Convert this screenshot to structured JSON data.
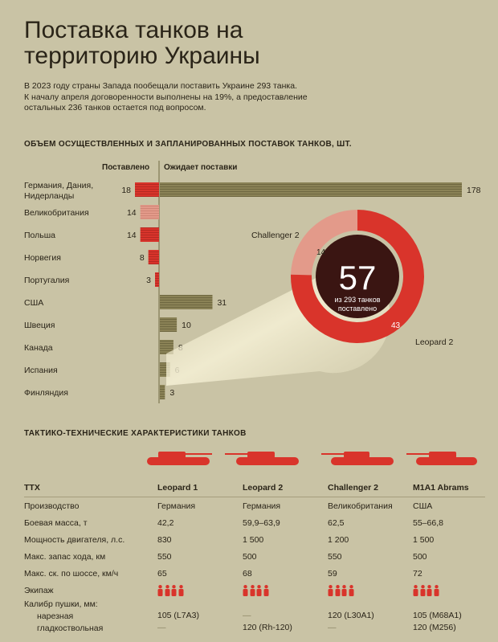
{
  "title": "Поставка танков на территорию Украины",
  "intro": "В 2023 году страны Запада пообещали поставить Украине 293 танка.\nК началу апреля договоренности выполнены на 19%, а предоставление\nостальных 236 танков остается под вопросом.",
  "chart_section_title": "ОБЪЕМ ОСУЩЕСТВЛЕННЫХ И ЗАПЛАНИРОВАННЫХ ПОСТАВОК ТАНКОВ, ШТ.",
  "colors": {
    "background": "#c9c3a5",
    "delivered": "#d9342b",
    "delivered_light": "#e39a8a",
    "pending": "#8a8256",
    "dark_text": "#2a2418"
  },
  "chart_data": [
    {
      "type": "bar",
      "headers": {
        "delivered": "Поставлено",
        "pending": "Ожидает поставки"
      },
      "categories": [
        "Германия, Дания, Нидерланды",
        "Великобритания",
        "Польша",
        "Норвегия",
        "Португалия",
        "США",
        "Швеция",
        "Канада",
        "Испания",
        "Финляндия"
      ],
      "series": [
        {
          "name": "Поставлено",
          "values": [
            18,
            14,
            14,
            8,
            3,
            0,
            0,
            0,
            0,
            0
          ]
        },
        {
          "name": "Ожидает поставки",
          "values": [
            178,
            0,
            0,
            0,
            0,
            31,
            10,
            8,
            6,
            3
          ]
        }
      ]
    },
    {
      "type": "pie",
      "center_value": "57",
      "center_text": "из 293 танков поставлено",
      "labels": [
        "Challenger 2",
        "Leopard 2"
      ],
      "values": [
        14,
        43
      ]
    }
  ],
  "ttx": {
    "section_title": "ТАКТИКО-ТЕХНИЧЕСКИЕ ХАРАКТЕРИСТИКИ ТАНКОВ",
    "header": [
      "ТТХ",
      "Leopard 1",
      "Leopard 2",
      "Challenger 2",
      "M1A1 Abrams"
    ],
    "rows": [
      [
        "Производство",
        "Германия",
        "Германия",
        "Великобритания",
        "США"
      ],
      [
        "Боевая масса, т",
        "42,2",
        "59,9–63,9",
        "62,5",
        "55–66,8"
      ],
      [
        "Мощность двигателя, л.с.",
        "830",
        "1 500",
        "1 200",
        "1 500"
      ],
      [
        "Макс. запас хода, км",
        "550",
        "500",
        "550",
        "500"
      ],
      [
        "Макс. ск. по шоссе, км/ч",
        "65",
        "68",
        "59",
        "72"
      ]
    ],
    "crew_label": "Экипаж",
    "crew": [
      4,
      4,
      4,
      4
    ],
    "caliber": {
      "label": "Калибр пушки, мм:",
      "rifled_label": "нарезная",
      "smooth_label": "гладкоствольная",
      "rifled": [
        "105 (L7A3)",
        "—",
        "120 (L30A1)",
        "105 (M68A1)"
      ],
      "smooth": [
        "—",
        "120 (Rh-120)",
        "—",
        "120 (M256)"
      ]
    }
  }
}
